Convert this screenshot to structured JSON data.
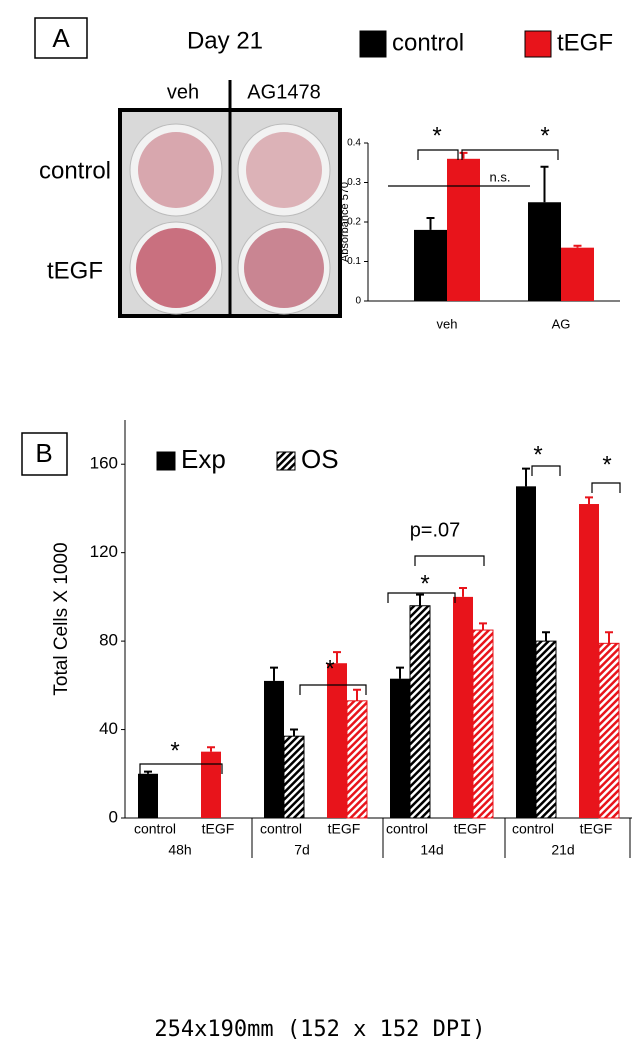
{
  "panel_a": {
    "label": "A",
    "title": "Day 21",
    "columns": [
      "veh",
      "AG1478"
    ],
    "rows": [
      "control",
      "tEGF"
    ]
  },
  "panel_b": {
    "label": "B"
  },
  "caption": "254x190mm (152 x 152 DPI)",
  "chart_data": [
    {
      "type": "bar",
      "y_label": "Absorbance 570",
      "categories": [
        "veh",
        "AG"
      ],
      "series": [
        {
          "name": "control",
          "color": "#000000",
          "values": [
            0.18,
            0.25
          ],
          "errors": [
            0.03,
            0.09
          ]
        },
        {
          "name": "tEGF",
          "color": "#e8141b",
          "values": [
            0.36,
            0.135
          ],
          "errors": [
            0.015,
            0.005
          ]
        }
      ],
      "ylim": [
        0,
        0.4
      ],
      "yticks": [
        0,
        0.1,
        0.2,
        0.3,
        0.4
      ],
      "annotations": [
        "*",
        "*",
        "n.s."
      ]
    },
    {
      "type": "bar",
      "y_label": "Total Cells X 1000",
      "categories": [
        "control",
        "tEGF",
        "control",
        "tEGF",
        "control",
        "tEGF",
        "control",
        "tEGF"
      ],
      "groups": [
        "48h",
        "7d",
        "14d",
        "21d"
      ],
      "bar_colors": [
        "#000000",
        "#e8141b",
        "#000000",
        "#e8141b",
        "#000000",
        "#e8141b",
        "#000000",
        "#e8141b"
      ],
      "series": [
        {
          "name": "Exp",
          "pattern": "solid",
          "color": "#000000",
          "values": [
            20,
            30,
            62,
            70,
            63,
            100,
            150,
            142
          ],
          "errors": [
            1,
            2,
            6,
            5,
            5,
            4,
            8,
            3
          ]
        },
        {
          "name": "OS",
          "pattern": "hatched",
          "color": "#000000",
          "values": [
            null,
            null,
            37,
            53,
            96,
            85,
            80,
            79
          ],
          "errors": [
            null,
            null,
            3,
            5,
            5,
            3,
            4,
            5
          ]
        }
      ],
      "ylim": [
        0,
        180
      ],
      "yticks": [
        0,
        40,
        80,
        120,
        160
      ],
      "annotations": [
        "*",
        "*",
        "p=.07",
        "*",
        "*",
        "*"
      ]
    }
  ]
}
